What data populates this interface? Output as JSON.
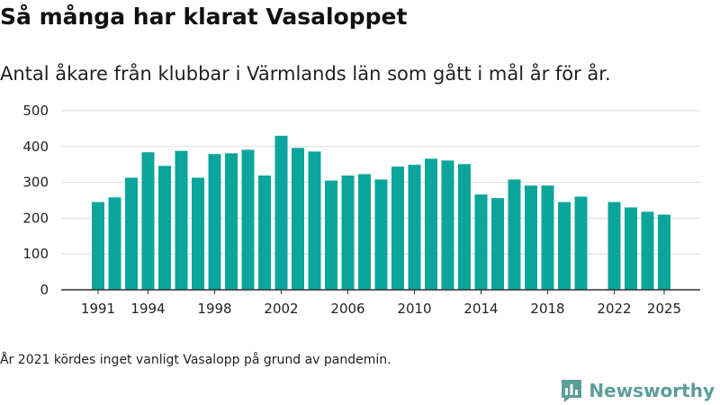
{
  "header": {
    "title": "Så många har klarat Vasaloppet",
    "subtitle": "Antal åkare från klubbar i Värmlands län som gått i mål år för år."
  },
  "footer": {
    "note": "År 2021 kördes inget vanligt Vasalopp på grund av pandemin.",
    "brand": "Newsworthy"
  },
  "colors": {
    "bar": "#0ca59b",
    "grid": "#dddddd",
    "axis": "#333333",
    "brand": "#5a9e9a"
  },
  "chart_data": {
    "type": "bar",
    "title": "Så många har klarat Vasaloppet",
    "subtitle": "Antal åkare från klubbar i Värmlands län som gått i mål år för år.",
    "xlabel": "",
    "ylabel": "",
    "ylim": [
      0,
      500
    ],
    "yticks": [
      0,
      100,
      200,
      300,
      400,
      500
    ],
    "xticks": [
      1991,
      1994,
      1998,
      2002,
      2006,
      2010,
      2014,
      2018,
      2022,
      2025
    ],
    "grid": true,
    "x": [
      1991,
      1992,
      1993,
      1994,
      1995,
      1996,
      1997,
      1998,
      1999,
      2000,
      2001,
      2002,
      2003,
      2004,
      2005,
      2006,
      2007,
      2008,
      2009,
      2010,
      2011,
      2012,
      2013,
      2014,
      2015,
      2016,
      2017,
      2018,
      2019,
      2020,
      2021,
      2022,
      2023,
      2024,
      2025
    ],
    "values": [
      245,
      258,
      313,
      384,
      346,
      388,
      313,
      379,
      381,
      391,
      319,
      430,
      396,
      386,
      305,
      319,
      323,
      308,
      344,
      349,
      366,
      361,
      351,
      266,
      256,
      308,
      291,
      291,
      245,
      260,
      null,
      245,
      230,
      218,
      210
    ]
  }
}
